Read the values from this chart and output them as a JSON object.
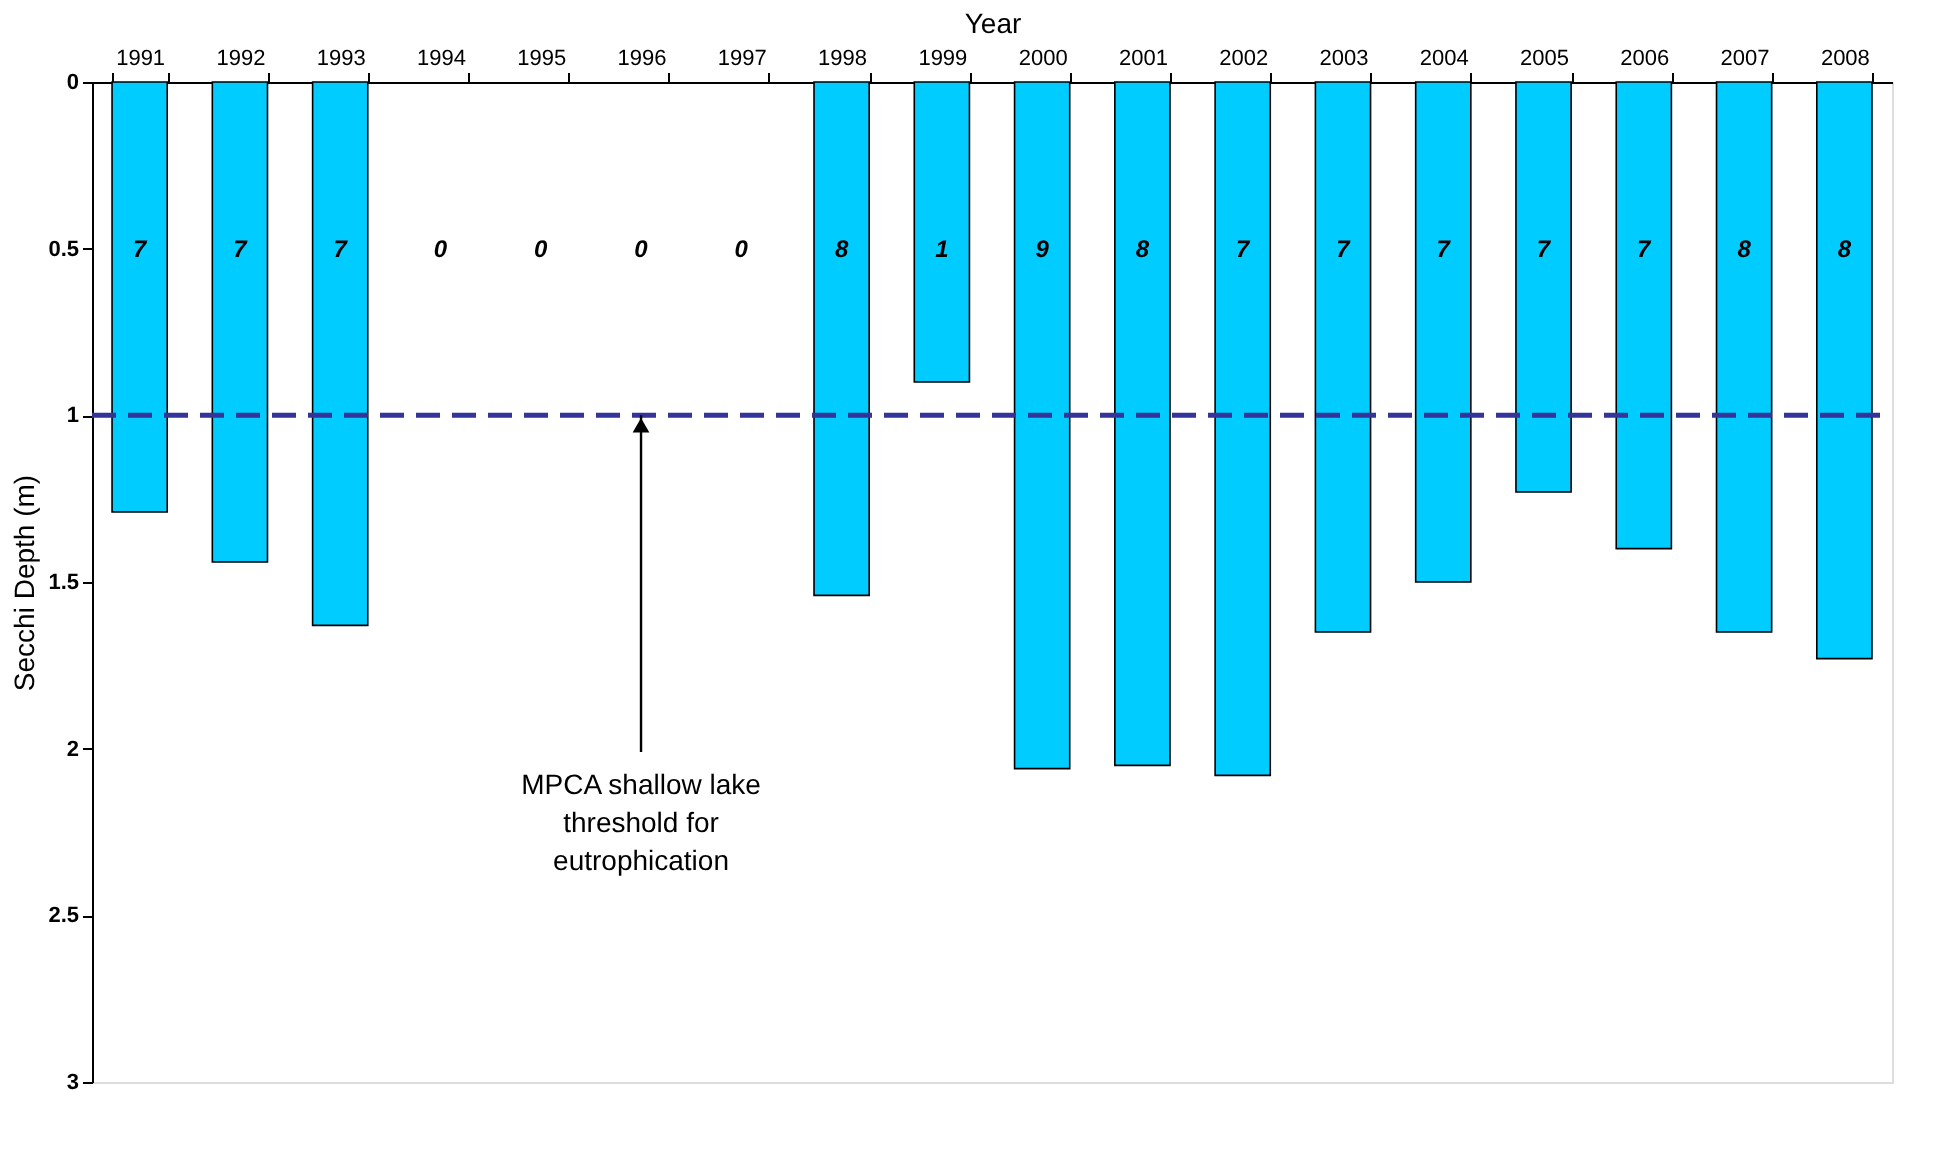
{
  "chart_data": {
    "type": "bar",
    "xlabel": "Year",
    "ylabel": "Secchi Depth (m)",
    "categories": [
      "1991",
      "1992",
      "1993",
      "1994",
      "1995",
      "1996",
      "1997",
      "1998",
      "1999",
      "2000",
      "2001",
      "2002",
      "2003",
      "2004",
      "2005",
      "2006",
      "2007",
      "2008"
    ],
    "values": [
      1.29,
      1.44,
      1.63,
      null,
      null,
      null,
      null,
      1.54,
      0.9,
      2.06,
      2.05,
      2.08,
      1.65,
      1.5,
      1.23,
      1.4,
      1.65,
      1.73
    ],
    "color": "#00ccff",
    "ylim": [
      3,
      0
    ],
    "yticks": [
      0,
      0.5,
      1,
      1.5,
      2,
      2.5,
      3
    ],
    "ref_lines": [
      {
        "axis": "y",
        "value": 1,
        "label": null,
        "color": "#333399",
        "line_style": "dashed"
      }
    ],
    "annotations": [
      {
        "text": "MPCA shallow lake threshold for eutrophication",
        "x": "1996",
        "y": 1
      },
      "7",
      "7",
      "7",
      "0",
      "0",
      "0",
      "0",
      "8",
      "1",
      "9",
      "8",
      "7",
      "7",
      "7",
      "7",
      "7",
      "8",
      "8"
    ],
    "grid": false
  }
}
